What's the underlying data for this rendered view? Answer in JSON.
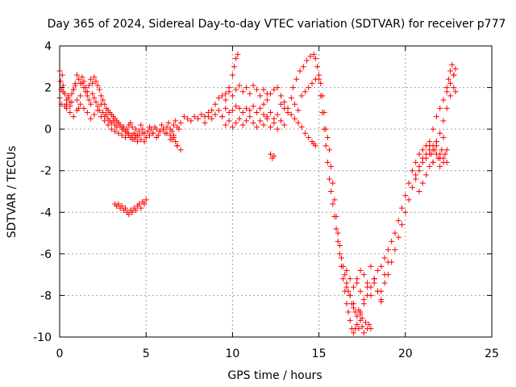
{
  "chart_data": {
    "type": "scatter",
    "title": "Day 365 of 2024, Sidereal Day-to-day VTEC variation (SDTVAR) for receiver p777",
    "xlabel": "GPS time / hours",
    "ylabel": "SDTVAR / TECUs",
    "xlim": [
      0,
      25
    ],
    "ylim": [
      -10,
      4
    ],
    "xticks": [
      "0",
      "5",
      "10",
      "15",
      "20",
      "25"
    ],
    "yticks": [
      "4",
      "2",
      "0",
      "-2",
      "-4",
      "-6",
      "-8",
      "-10"
    ],
    "grid": true,
    "marker": "plus",
    "color": "#ff0000",
    "series": [
      {
        "x": [
          0.0,
          0.1,
          0.2,
          0.3,
          0.4,
          0.5,
          0.6,
          0.7,
          0.8,
          0.9,
          1.0,
          1.1,
          1.2,
          1.3,
          1.4,
          1.5,
          1.6,
          1.7,
          1.8,
          1.9,
          2.0,
          2.1,
          2.2,
          2.3,
          2.4,
          2.5,
          2.6,
          2.7,
          2.8,
          2.9,
          3.0,
          3.1,
          3.2,
          3.3,
          3.4,
          3.5,
          3.6,
          3.7,
          3.8,
          3.9,
          4.0,
          4.1,
          4.2,
          4.3,
          4.4,
          4.5,
          4.6,
          4.7,
          4.8,
          4.9,
          5.0,
          5.1,
          5.2,
          5.3,
          5.4,
          5.5,
          5.6,
          5.7,
          5.8,
          5.9,
          6.0,
          6.1,
          6.2,
          6.3,
          6.4,
          6.5,
          6.6,
          6.7,
          6.8,
          6.9,
          7.0,
          0.0,
          0.05,
          0.1,
          0.15,
          0.2,
          0.3,
          0.4,
          0.5,
          0.6,
          0.7,
          0.8,
          0.9,
          1.0,
          1.1,
          1.2,
          1.3,
          1.4,
          1.5,
          1.6,
          1.7,
          1.8,
          1.9,
          2.0,
          2.1,
          2.2,
          2.3,
          2.4,
          2.5,
          2.6,
          2.7,
          2.8,
          2.9,
          3.0,
          3.1,
          3.2,
          3.3,
          3.4,
          3.5,
          3.6,
          3.7,
          3.8,
          3.9,
          4.0,
          4.1,
          4.2,
          4.3,
          4.4,
          4.5,
          4.6,
          4.7,
          4.8,
          4.9,
          5.0,
          5.2,
          5.4,
          5.6,
          5.8,
          6.0,
          6.2,
          6.4,
          6.6,
          6.8,
          0.4,
          0.6,
          0.8,
          1.0,
          1.2,
          1.4,
          1.6,
          1.8,
          2.0,
          2.2,
          2.4,
          2.6,
          2.8,
          3.0,
          3.2,
          3.4,
          3.6,
          3.8,
          4.0,
          4.2,
          4.4,
          3.2,
          3.3,
          3.4,
          3.5,
          3.6,
          3.7,
          3.8,
          3.9,
          4.0,
          4.1,
          4.2,
          4.3,
          4.4,
          4.5,
          4.6,
          4.7,
          4.8,
          4.9,
          5.0,
          6.4,
          6.5,
          6.6,
          6.7,
          6.8,
          7.0,
          7.2,
          7.4,
          7.6,
          7.8,
          8.0,
          8.2,
          8.4,
          8.6,
          8.8,
          9.0,
          9.2,
          9.4,
          9.6,
          9.8,
          10.0,
          10.2,
          10.4,
          10.6,
          10.8,
          11.0,
          11.2,
          11.4,
          11.6,
          11.8,
          12.0,
          12.2,
          12.4,
          12.6,
          12.8,
          13.0,
          13.2,
          13.4,
          13.6,
          13.8,
          14.0,
          14.2,
          14.4,
          14.6,
          14.8,
          8.4,
          8.6,
          8.8,
          9.0,
          9.2,
          9.4,
          9.6,
          9.8,
          10.0,
          10.1,
          10.2,
          10.3,
          9.4,
          9.6,
          9.8,
          10.0,
          10.2,
          10.4,
          10.6,
          10.8,
          11.0,
          11.2,
          11.4,
          11.6,
          11.8,
          12.0,
          12.2,
          12.4,
          12.6,
          12.8,
          13.0,
          9.6,
          9.8,
          10.0,
          10.2,
          10.4,
          10.6,
          10.8,
          11.0,
          11.2,
          11.4,
          11.6,
          11.8,
          12.0,
          11.8,
          12.0,
          12.2,
          12.4,
          12.6,
          12.8,
          13.0,
          13.2,
          13.4,
          13.6,
          13.8,
          14.0,
          14.2,
          14.4,
          14.6,
          14.7,
          14.8,
          12.2,
          12.3,
          12.4,
          13.5,
          13.7,
          13.9,
          14.1,
          14.3,
          14.5,
          14.7,
          14.8,
          14.9,
          15.0,
          15.1,
          15.2,
          15.3,
          15.4,
          15.5,
          15.6,
          15.7,
          15.8,
          15.9,
          16.0,
          16.1,
          16.2,
          16.3,
          16.4,
          16.5,
          16.6,
          16.7,
          16.8,
          16.9,
          17.0,
          17.1,
          17.2,
          17.3,
          17.4,
          17.5,
          17.6,
          17.7,
          17.8,
          17.9,
          18.0,
          15.0,
          15.1,
          15.2,
          15.3,
          15.4,
          15.5,
          15.6,
          15.7,
          15.8,
          15.9,
          16.0,
          16.1,
          16.2,
          16.3,
          16.4,
          16.5,
          16.6,
          16.7,
          16.8,
          16.9,
          17.0,
          17.1,
          17.2,
          17.3,
          17.4,
          17.5,
          16.6,
          16.8,
          17.0,
          17.2,
          17.4,
          17.6,
          17.8,
          18.0,
          18.2,
          18.4,
          18.6,
          16.6,
          16.8,
          17.0,
          17.2,
          17.4,
          17.6,
          17.8,
          18.0,
          18.2,
          18.4,
          18.6,
          18.8,
          19.0,
          17.4,
          17.6,
          17.8,
          18.0,
          18.2,
          18.4,
          18.6,
          18.8,
          19.0,
          19.2,
          19.4,
          19.6,
          19.8,
          20.0,
          20.2,
          20.4,
          20.6,
          20.8,
          21.0,
          21.2,
          21.4,
          21.6,
          21.8,
          22.0,
          22.2,
          22.4,
          22.6,
          22.8,
          22.9,
          18.6,
          18.8,
          19.0,
          19.2,
          19.4,
          19.6,
          19.8,
          20.0,
          20.2,
          20.4,
          20.6,
          20.8,
          21.0,
          21.2,
          21.4,
          21.6,
          21.8,
          22.0,
          22.2,
          22.4,
          22.6,
          22.8,
          20.6,
          20.8,
          21.0,
          21.2,
          21.4,
          21.6,
          21.8,
          22.0,
          22.2,
          22.4,
          20.8,
          21.0,
          21.2,
          21.4,
          21.6,
          21.8,
          22.0,
          22.2,
          21.4,
          21.5,
          21.6,
          21.7,
          21.8,
          21.9,
          22.0,
          22.1,
          22.2,
          22.3,
          22.4,
          22.4,
          22.5,
          22.6,
          22.7,
          22.8,
          22.9
        ],
        "y": [
          1.5,
          1.2,
          1.8,
          1.1,
          1.4,
          1.6,
          1.3,
          1.7,
          1.9,
          2.1,
          1.4,
          1.0,
          1.6,
          2.2,
          2.0,
          1.8,
          1.6,
          1.4,
          1.2,
          1.7,
          1.5,
          1.3,
          1.1,
          0.9,
          1.2,
          0.8,
          0.6,
          0.7,
          0.5,
          0.4,
          0.3,
          0.4,
          0.2,
          0.1,
          0.3,
          0.2,
          0.0,
          0.1,
          -0.1,
          0.0,
          0.2,
          0.3,
          0.1,
          -0.2,
          0.0,
          -0.3,
          -0.1,
          0.2,
          0.0,
          -0.2,
          -0.4,
          -0.1,
          0.1,
          0.0,
          -0.2,
          0.1,
          0.0,
          -0.3,
          -0.1,
          0.2,
          0.0,
          -0.2,
          0.1,
          0.3,
          0.0,
          -0.1,
          0.2,
          0.4,
          0.1,
          0.0,
          0.3,
          2.8,
          2.3,
          1.9,
          2.6,
          2.1,
          1.7,
          1.2,
          1.5,
          1.1,
          1.3,
          1.9,
          2.2,
          2.6,
          2.4,
          2.2,
          2.5,
          2.3,
          2.0,
          1.8,
          2.1,
          2.4,
          2.2,
          2.5,
          2.3,
          2.1,
          1.9,
          1.6,
          1.4,
          1.2,
          1.0,
          0.9,
          0.8,
          0.7,
          0.6,
          0.5,
          0.4,
          0.3,
          0.2,
          0.1,
          0.0,
          -0.1,
          -0.2,
          -0.3,
          -0.4,
          -0.3,
          -0.5,
          -0.4,
          -0.6,
          -0.3,
          -0.5,
          -0.2,
          -0.6,
          -0.4,
          -0.3,
          -0.2,
          -0.4,
          -0.1,
          0.0,
          -0.2,
          -0.5,
          -0.3,
          -0.8,
          1.0,
          0.8,
          0.6,
          0.9,
          1.2,
          1.0,
          0.8,
          0.5,
          0.7,
          0.9,
          0.6,
          0.4,
          0.2,
          0.0,
          -0.1,
          -0.2,
          -0.3,
          -0.4,
          -0.2,
          -0.5,
          -0.3,
          -3.6,
          -3.7,
          -3.6,
          -3.8,
          -3.7,
          -3.9,
          -3.8,
          -4.0,
          -4.1,
          -3.9,
          -4.0,
          -3.8,
          -3.9,
          -3.7,
          -3.6,
          -3.8,
          -3.5,
          -3.6,
          -3.4,
          -0.3,
          -0.5,
          -0.4,
          -0.6,
          -0.8,
          -1.0,
          0.6,
          0.5,
          0.4,
          0.6,
          0.5,
          0.7,
          0.6,
          0.8,
          0.5,
          0.7,
          0.9,
          0.6,
          1.0,
          0.8,
          0.9,
          1.1,
          1.0,
          0.8,
          1.0,
          0.9,
          1.1,
          0.8,
          1.0,
          0.7,
          0.6,
          0.8,
          0.5,
          0.7,
          1.2,
          1.0,
          0.8,
          1.5,
          1.2,
          0.9,
          1.6,
          1.8,
          2.0,
          2.2,
          2.4,
          0.3,
          0.6,
          0.9,
          1.2,
          1.5,
          1.6,
          1.7,
          2.0,
          2.6,
          3.0,
          3.4,
          3.6,
          0.6,
          0.2,
          0.4,
          0.1,
          0.3,
          0.5,
          0.2,
          0.4,
          0.6,
          0.3,
          0.1,
          0.4,
          0.2,
          0.5,
          0.1,
          0.3,
          0.0,
          0.4,
          0.2,
          1.4,
          1.8,
          1.6,
          1.9,
          2.1,
          1.8,
          2.0,
          1.7,
          2.1,
          1.9,
          1.6,
          1.9,
          1.7,
          1.2,
          1.4,
          1.7,
          1.9,
          2.0,
          1.6,
          1.3,
          1.0,
          0.7,
          0.5,
          0.3,
          0.1,
          -0.2,
          -0.4,
          -0.6,
          -0.7,
          -0.8,
          -1.2,
          -1.4,
          -1.3,
          2.0,
          2.4,
          2.8,
          3.0,
          3.3,
          3.5,
          3.6,
          3.4,
          3.0,
          2.4,
          1.6,
          0.8,
          0.0,
          -0.8,
          -1.6,
          -2.4,
          -3.0,
          -3.6,
          -4.2,
          -4.8,
          -5.4,
          -6.0,
          -6.6,
          -7.2,
          -7.8,
          -8.4,
          -8.8,
          -9.2,
          -9.6,
          -9.8,
          -9.6,
          -9.4,
          -9.6,
          -9.2,
          -9.5,
          -9.8,
          -9.3,
          -9.6,
          -9.4,
          -9.6,
          2.6,
          2.2,
          1.6,
          0.8,
          0.0,
          -0.4,
          -1.0,
          -1.8,
          -2.6,
          -3.4,
          -4.2,
          -5.0,
          -5.6,
          -6.2,
          -6.6,
          -7.0,
          -7.4,
          -7.8,
          -8.0,
          -8.4,
          -8.6,
          -8.8,
          -9.0,
          -8.7,
          -8.9,
          -9.1,
          -6.8,
          -7.2,
          -7.6,
          -7.4,
          -7.8,
          -8.2,
          -7.6,
          -8.0,
          -7.4,
          -7.8,
          -8.2,
          -7.6,
          -8.0,
          -8.4,
          -7.2,
          -6.8,
          -7.0,
          -7.4,
          -6.6,
          -7.2,
          -7.8,
          -8.3,
          -7.0,
          -6.4,
          -8.8,
          -8.4,
          -8.0,
          -7.6,
          -7.2,
          -6.8,
          -6.6,
          -6.2,
          -5.8,
          -5.4,
          -5.0,
          -4.4,
          -3.8,
          -3.2,
          -2.6,
          -2.0,
          -1.6,
          -1.2,
          -1.0,
          -0.8,
          -0.6,
          0.0,
          0.6,
          1.0,
          1.4,
          1.8,
          2.2,
          2.6,
          2.9,
          -7.8,
          -7.4,
          -7.0,
          -6.4,
          -5.8,
          -5.2,
          -4.6,
          -4.0,
          -3.4,
          -2.8,
          -2.2,
          -1.8,
          -1.4,
          -1.2,
          -1.0,
          -0.8,
          -0.6,
          -0.2,
          0.4,
          1.0,
          1.6,
          2.0,
          -2.4,
          -2.0,
          -1.6,
          -1.4,
          -1.2,
          -1.0,
          -0.8,
          -1.2,
          -1.4,
          -1.0,
          -3.0,
          -2.6,
          -2.2,
          -1.8,
          -1.6,
          -1.2,
          -1.4,
          -1.6,
          -0.8,
          -1.2,
          -1.6,
          -1.0,
          -0.6,
          -1.4,
          -1.8,
          -1.0,
          -0.4,
          -1.2,
          -1.6,
          2.0,
          2.4,
          2.8,
          3.1,
          2.6,
          1.8
        ]
      }
    ]
  }
}
